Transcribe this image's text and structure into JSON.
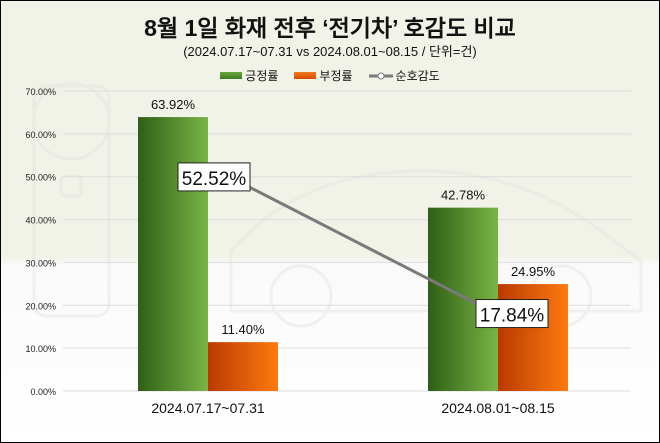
{
  "chart_data": {
    "type": "bar",
    "title": "8월 1일 화재 전후 ‘전기차’ 호감도 비교",
    "subtitle": "(2024.07.17~07.31 vs 2024.08.01~08.15 / 단위=건)",
    "categories": [
      "2024.07.17~07.31",
      "2024.08.01~08.15"
    ],
    "series": [
      {
        "name": "긍정률",
        "type": "bar",
        "color": "#4e8a2c",
        "values": [
          63.92,
          42.78
        ],
        "labels": [
          "63.92%",
          "42.78%"
        ]
      },
      {
        "name": "부정률",
        "type": "bar",
        "color": "#e85a0c",
        "values": [
          11.4,
          24.95
        ],
        "labels": [
          "11.40%",
          "24.95%"
        ]
      },
      {
        "name": "순호감도",
        "type": "line",
        "color": "#7a7a7a",
        "values": [
          52.52,
          17.84
        ],
        "labels": [
          "52.52%",
          "17.84%"
        ]
      }
    ],
    "yticks": [
      "0.00%",
      "10.00%",
      "20.00%",
      "30.00%",
      "40.00%",
      "50.00%",
      "60.00%",
      "70.00%"
    ],
    "ylim": [
      0,
      70
    ],
    "grid": true,
    "legend": "top"
  }
}
